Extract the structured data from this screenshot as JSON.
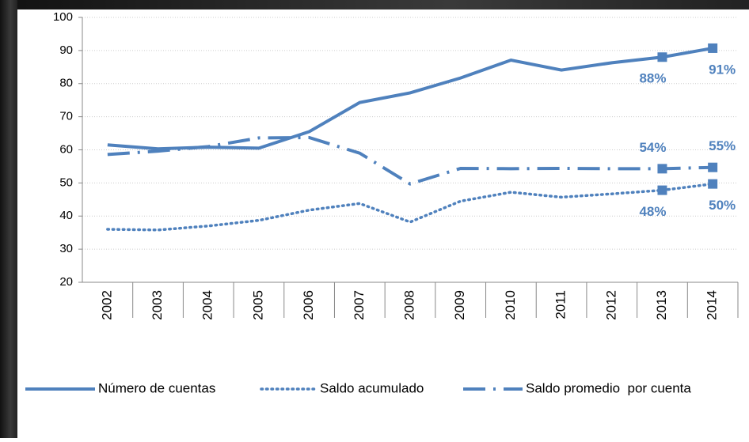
{
  "chart_data": {
    "type": "line",
    "categories": [
      "2002",
      "2003",
      "2004",
      "2005",
      "2006",
      "2007",
      "2008",
      "2009",
      "2010",
      "2011",
      "2012",
      "2013",
      "2014"
    ],
    "series": [
      {
        "name": "Número de cuentas",
        "color": "#4f81bd",
        "dash": "solid",
        "values": [
          61.5,
          60.3,
          60.8,
          60.5,
          65.5,
          74.3,
          77.2,
          81.7,
          87.1,
          84.1,
          86.3,
          88,
          90.7
        ],
        "value_labels": [
          null,
          null,
          null,
          null,
          null,
          null,
          null,
          null,
          null,
          null,
          null,
          "88%",
          "91%"
        ]
      },
      {
        "name": "Saldo acumulado",
        "color": "#4f81bd",
        "dash": "dotted",
        "values": [
          36,
          35.8,
          37,
          38.7,
          41.8,
          43.8,
          38.2,
          44.5,
          47.2,
          45.7,
          46.7,
          47.8,
          49.7
        ],
        "value_labels": [
          null,
          null,
          null,
          null,
          null,
          null,
          null,
          null,
          null,
          null,
          null,
          "48%",
          "50%"
        ]
      },
      {
        "name": "Saldo promedio  por cuenta",
        "color": "#4f81bd",
        "dash": "dashdot",
        "values": [
          58.6,
          59.6,
          61,
          63.6,
          63.7,
          59,
          49.7,
          54.4,
          54.3,
          54.4,
          54.3,
          54.3,
          54.7
        ],
        "value_labels": [
          null,
          null,
          null,
          null,
          null,
          null,
          null,
          null,
          null,
          null,
          null,
          "54%",
          "55%"
        ]
      }
    ],
    "ylim": [
      20,
      100
    ],
    "yticks": [
      20,
      30,
      40,
      50,
      60,
      70,
      80,
      90,
      100
    ],
    "grid": true,
    "legend": "bottom"
  }
}
